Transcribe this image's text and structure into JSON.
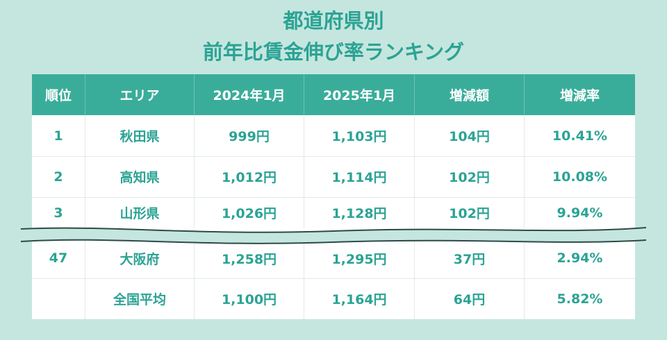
{
  "title": {
    "line1": "都道府県別",
    "line2": "前年比賃金伸び率ランキング"
  },
  "table": {
    "headers": [
      "順位",
      "エリア",
      "2024年1月",
      "2025年1月",
      "増減額",
      "増減率"
    ],
    "rows": [
      [
        "1",
        "秋田県",
        "999円",
        "1,103円",
        "104円",
        "10.41%"
      ],
      [
        "2",
        "高知県",
        "1,012円",
        "1,114円",
        "102円",
        "10.08%"
      ],
      [
        "3",
        "山形県",
        "1,026円",
        "1,128円",
        "102円",
        "9.94%"
      ],
      [
        "47",
        "大阪府",
        "1,258円",
        "1,295円",
        "37円",
        "2.94%"
      ],
      [
        "",
        "全国平均",
        "1,100円",
        "1,164円",
        "64円",
        "5.82%"
      ]
    ]
  },
  "colors": {
    "background": "#c5e6df",
    "header": "#3aad9a",
    "accent_text": "#2ba394"
  }
}
